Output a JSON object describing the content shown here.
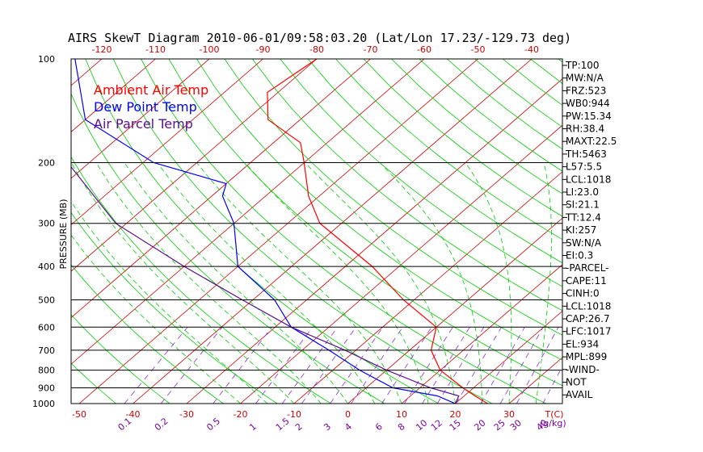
{
  "colors": {
    "ambient": "#ff0000",
    "dewpoint": "#0000ff",
    "parcel": "#5a0f8c",
    "isotherm": "#cc0000",
    "dry_adiabat": "#00cc00",
    "moist_adiabat": "#00cc00",
    "mixing_ratio": "#8a2be2",
    "isobar": "#000000",
    "axis_bottom_temp": "#cc0000",
    "axis_bottom_mix": "#7a00a0"
  },
  "chart_data": {
    "type": "line",
    "title": "AIRS SkewT Diagram 2010-06-01/09:58:03.20 (Lat/Lon 17.23/-129.73 deg)",
    "ylabel": "PRESSURE (MB)",
    "ylim": [
      1000,
      100
    ],
    "y_log_scale": true,
    "pressure_ticks": [
      "100",
      "200",
      "300",
      "400",
      "500",
      "600",
      "700",
      "800",
      "900",
      "1000"
    ],
    "top_temp_ticks": [
      "-120",
      "-110",
      "-100",
      "-90",
      "-80",
      "-70",
      "-60",
      "-50",
      "-40"
    ],
    "bottom_temp_ticks": [
      "-50",
      "-40",
      "-30",
      "-20",
      "-10",
      "0",
      "10",
      "20",
      "30"
    ],
    "bottom_temp_unit": "T(C)",
    "mixing_ratio_ticks": [
      "0.1",
      "0.2",
      "0.5",
      "1",
      "1.5",
      "2",
      "3",
      "4",
      "6",
      "8",
      "10",
      "12",
      "15",
      "20",
      "25",
      "30",
      "40"
    ],
    "mixing_ratio_unit": "(g/kg)",
    "legend": [
      "Ambient Air Temp",
      "Dew Point Temp",
      "Air Parcel Temp"
    ],
    "series": [
      {
        "name": "Ambient Air Temp",
        "pressure": [
          100,
          125,
          150,
          175,
          200,
          250,
          300,
          400,
          500,
          600,
          700,
          800,
          900,
          950,
          1000
        ],
        "temp": [
          -80,
          -82,
          -76,
          -65,
          -60,
          -52,
          -44,
          -25,
          -12,
          0,
          4,
          10,
          18,
          22,
          26
        ]
      },
      {
        "name": "Dew Point Temp",
        "pressure": [
          100,
          150,
          200,
          230,
          250,
          300,
          400,
          500,
          600,
          700,
          800,
          900,
          950,
          1000
        ],
        "temp": [
          -125,
          -110,
          -88,
          -70,
          -68,
          -60,
          -50,
          -36,
          -27,
          -15,
          -5,
          5,
          15,
          20
        ]
      },
      {
        "name": "Air Parcel Temp",
        "pressure": [
          100,
          150,
          200,
          300,
          400,
          500,
          600,
          700,
          800,
          900,
          950,
          1000
        ],
        "temp": [
          -126,
          -115,
          -104,
          -82,
          -60,
          -42,
          -27,
          -12,
          0,
          12,
          19,
          20
        ]
      }
    ]
  },
  "params": [
    "TP:100",
    "MW:N/A",
    "FRZ:523",
    "WB0:944",
    "PW:15.34",
    "RH:38.4",
    "MAXT:22.5",
    "TH:5463",
    "L57:5.5",
    "LCL:1018",
    "LI:23.0",
    "SI:21.1",
    "TT:12.4",
    "KI:257",
    "SW:N/A",
    "EI:0.3",
    "-PARCEL-",
    "CAPE:11",
    "CINH:0",
    "LCL:1018",
    "CAP:26.7",
    "LFC:1017",
    "EL:934",
    "MPL:899",
    "-WIND-",
    "NOT",
    "AVAIL"
  ]
}
